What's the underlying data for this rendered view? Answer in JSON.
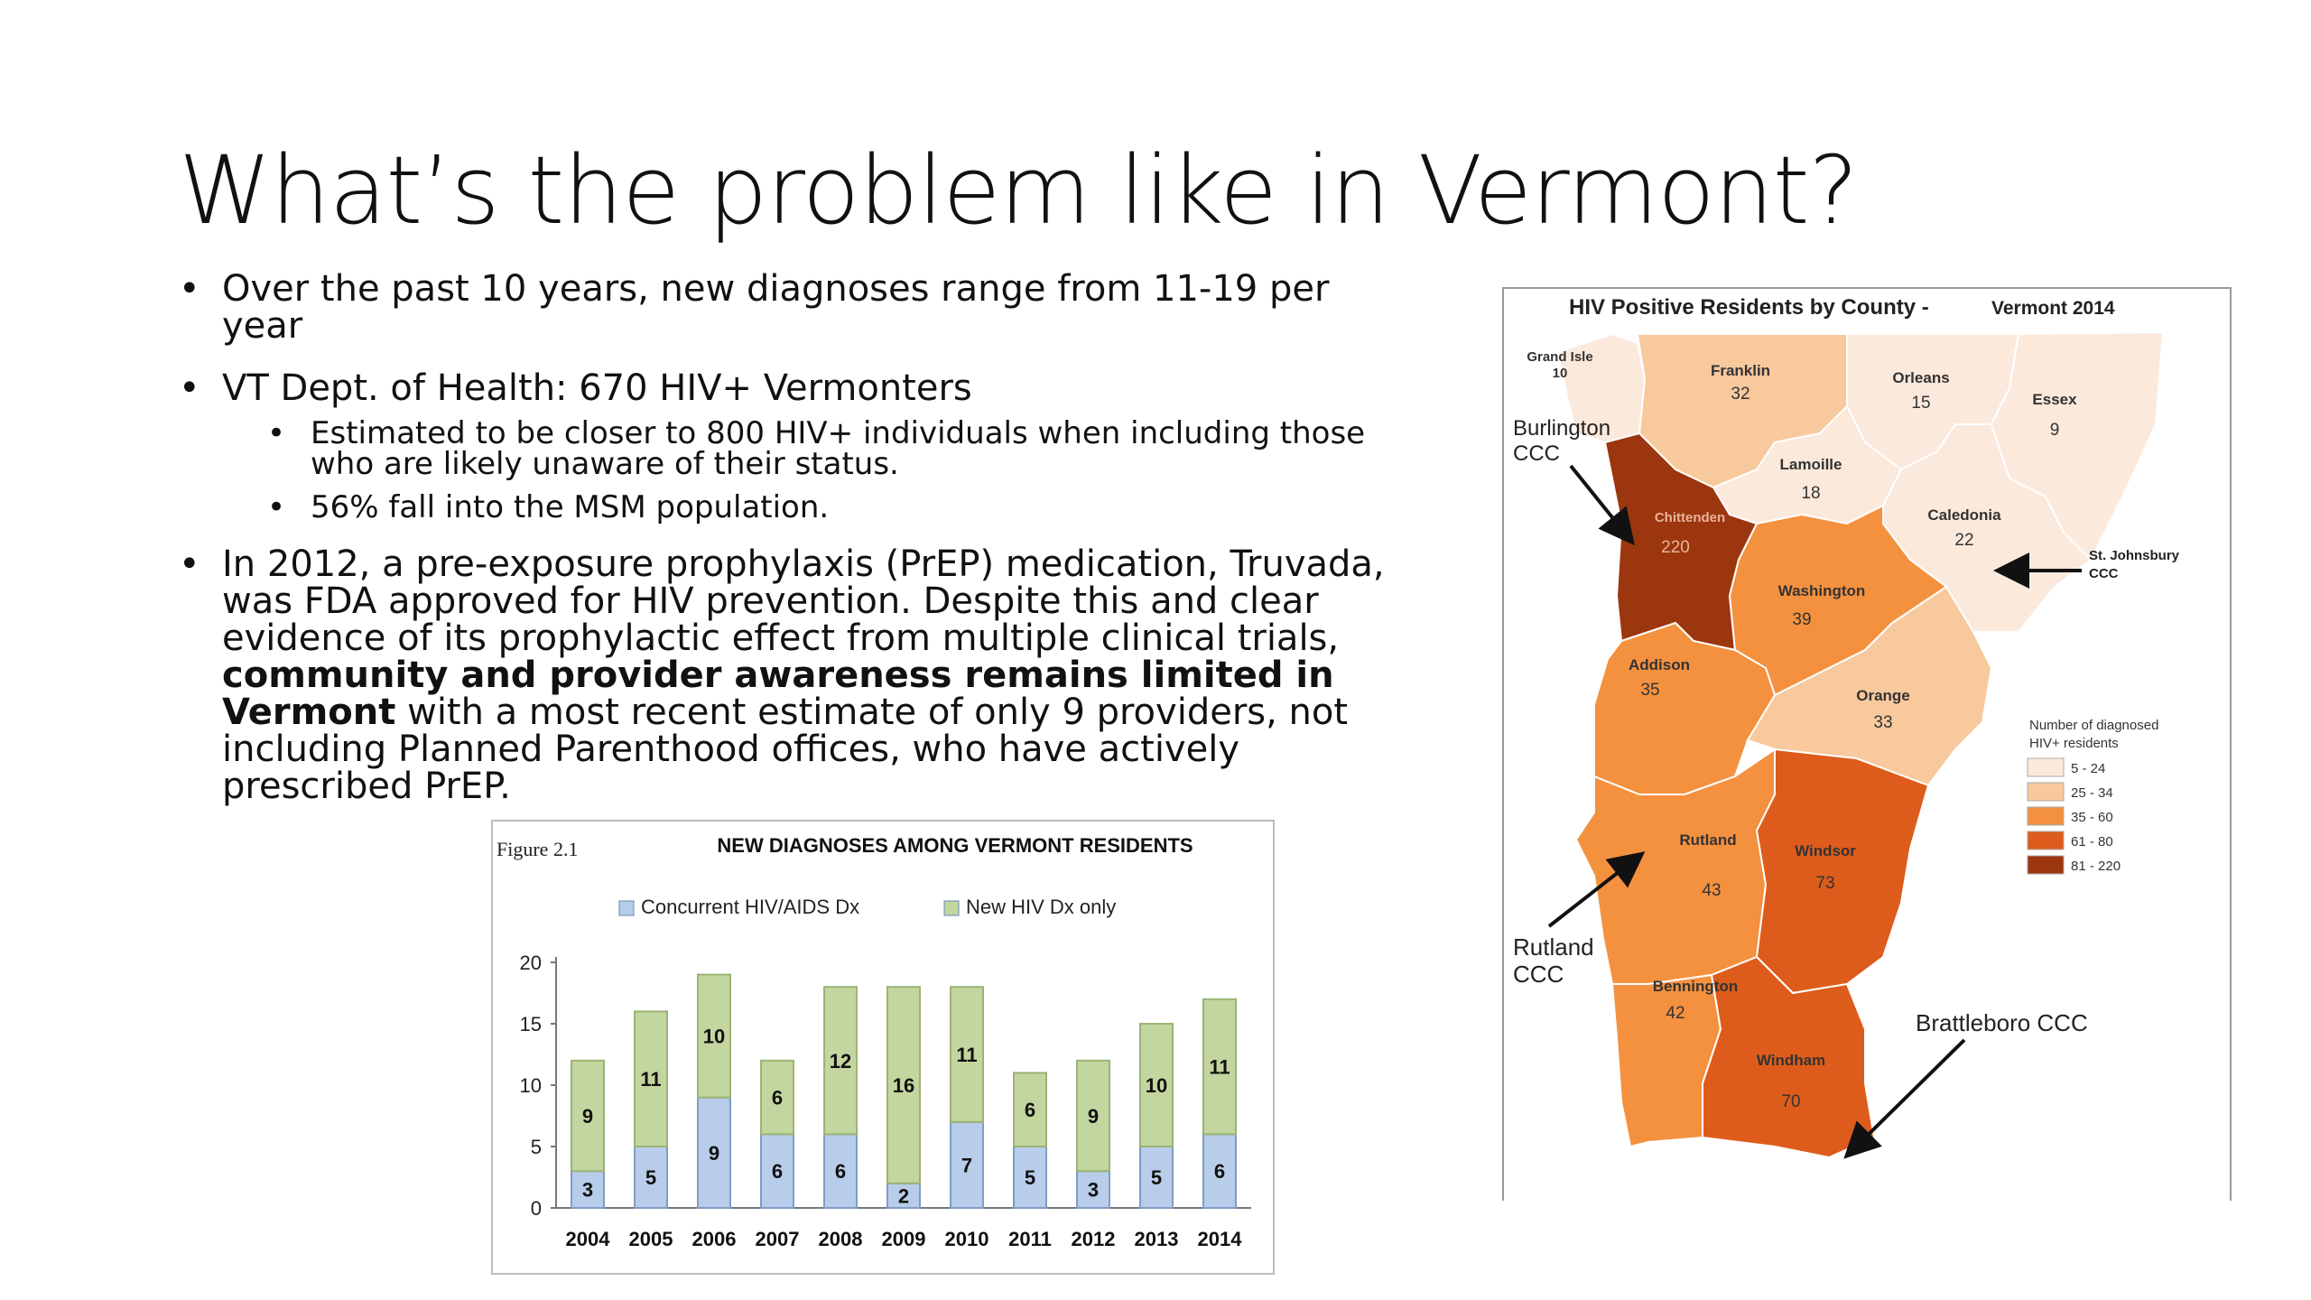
{
  "slide": {
    "title": "What’s the problem like in Vermont?",
    "bullets": {
      "b1": "Over the past 10 years, new diagnoses range from 11-19 per year",
      "b2": "VT Dept. of Health: 670 HIV+ Vermonters",
      "b2_sub1": "Estimated to be closer to 800 HIV+ individuals when including those who are likely unaware of their status.",
      "b2_sub2": "56% fall into the MSM population.",
      "b3_part1": "In 2012, a pre-exposure prophylaxis (PrEP) medication, Truvada, was FDA approved for HIV prevention. Despite this and clear evidence of its prophylactic effect from multiple clinical trials, ",
      "b3_bold": "community and provider awareness remains limited in Vermont",
      "b3_part2": " with a most recent estimate of only 9 providers, not including Planned Parenthood offices, who have actively prescribed PrEP."
    }
  },
  "chart_data": {
    "type": "bar",
    "figure_label": "Figure 2.1",
    "title": "NEW DIAGNOSES AMONG VERMONT RESIDENTS",
    "categories": [
      "2004",
      "2005",
      "2006",
      "2007",
      "2008",
      "2009",
      "2010",
      "2011",
      "2012",
      "2013",
      "2014"
    ],
    "series": [
      {
        "name": "Concurrent HIV/AIDS Dx",
        "values": [
          3,
          5,
          9,
          6,
          6,
          2,
          7,
          5,
          3,
          5,
          6
        ],
        "color": "#b8cde9"
      },
      {
        "name": "New HIV Dx only",
        "values": [
          9,
          11,
          10,
          6,
          12,
          16,
          11,
          6,
          9,
          10,
          11
        ],
        "color": "#c4d6a0"
      }
    ],
    "yticks": [
      "0",
      "5",
      "10",
      "15",
      "20"
    ],
    "ylim": [
      0,
      20
    ],
    "stacked": true,
    "legend": "top"
  },
  "map": {
    "title": "HIV Positive Residents by County -",
    "title_year": "Vermont 2014",
    "counties": [
      {
        "name": "Grand Isle",
        "value": "10"
      },
      {
        "name": "Franklin",
        "value": "32"
      },
      {
        "name": "Orleans",
        "value": "15"
      },
      {
        "name": "Essex",
        "value": "9"
      },
      {
        "name": "Lamoille",
        "value": "18"
      },
      {
        "name": "Chittenden",
        "value": "220"
      },
      {
        "name": "Caledonia",
        "value": "22"
      },
      {
        "name": "Washington",
        "value": "39"
      },
      {
        "name": "Addison",
        "value": "35"
      },
      {
        "name": "Orange",
        "value": "33"
      },
      {
        "name": "Rutland",
        "value": "43"
      },
      {
        "name": "Windsor",
        "value": "73"
      },
      {
        "name": "Bennington",
        "value": "42"
      },
      {
        "name": "Windham",
        "value": "70"
      }
    ],
    "callouts": {
      "burlington_1": "Burlington",
      "burlington_2": "CCC",
      "stj_1": "St. Johnsbury",
      "stj_2": "CCC",
      "rutland_1": "Rutland",
      "rutland_2": "CCC",
      "brattleboro": "Brattleboro CCC"
    },
    "legend": {
      "title_1": "Number of diagnosed",
      "title_2": "HIV+ residents",
      "items": [
        {
          "label": "5 - 24",
          "color": "#fbe9dc"
        },
        {
          "label": "25 - 34",
          "color": "#f8c99c"
        },
        {
          "label": "35 - 60",
          "color": "#f4913f"
        },
        {
          "label": "61 - 80",
          "color": "#dd5c1b"
        },
        {
          "label": "81 - 220",
          "color": "#9c360e"
        }
      ]
    }
  }
}
